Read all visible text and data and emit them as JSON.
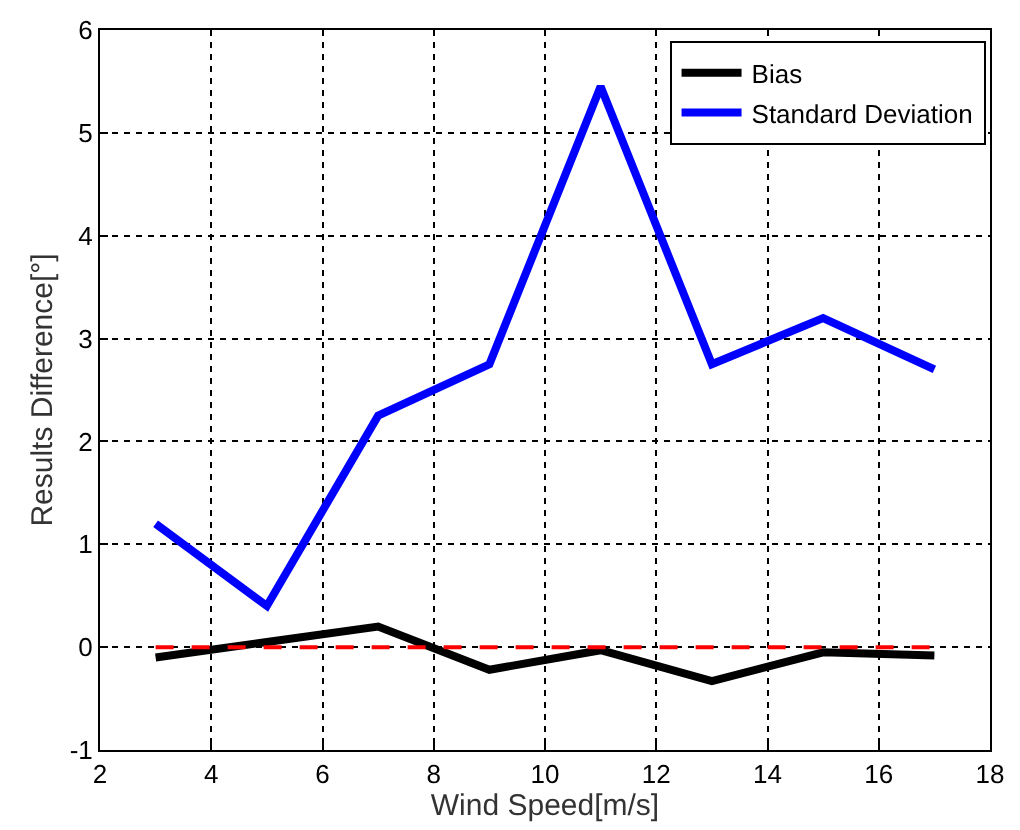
{
  "chart_data": {
    "type": "line",
    "xlabel": "Wind Speed[m/s]",
    "ylabel": "Results Difference[°]",
    "x": [
      3,
      5,
      7,
      9,
      11,
      13,
      15,
      17
    ],
    "series": [
      {
        "name": "Bias",
        "color": "#000000",
        "values": [
          -0.1,
          0.05,
          0.2,
          -0.22,
          -0.03,
          -0.33,
          -0.05,
          -0.08
        ]
      },
      {
        "name": "Standard Deviation",
        "color": "#0000ff",
        "values": [
          1.2,
          0.4,
          2.25,
          2.75,
          5.45,
          2.75,
          3.2,
          2.7
        ]
      },
      {
        "color": "#ff0000",
        "x": [
          3,
          17
        ],
        "values": [
          0,
          0
        ],
        "line_style": "dashed"
      }
    ],
    "xlim": [
      2,
      18
    ],
    "xticks": [
      2,
      4,
      6,
      8,
      10,
      12,
      14,
      16,
      18
    ],
    "ylim": [
      -1,
      6
    ],
    "yticks": [
      -1,
      0,
      1,
      2,
      3,
      4,
      5,
      6
    ],
    "grid": true,
    "legend": "top right",
    "marker": "none"
  }
}
